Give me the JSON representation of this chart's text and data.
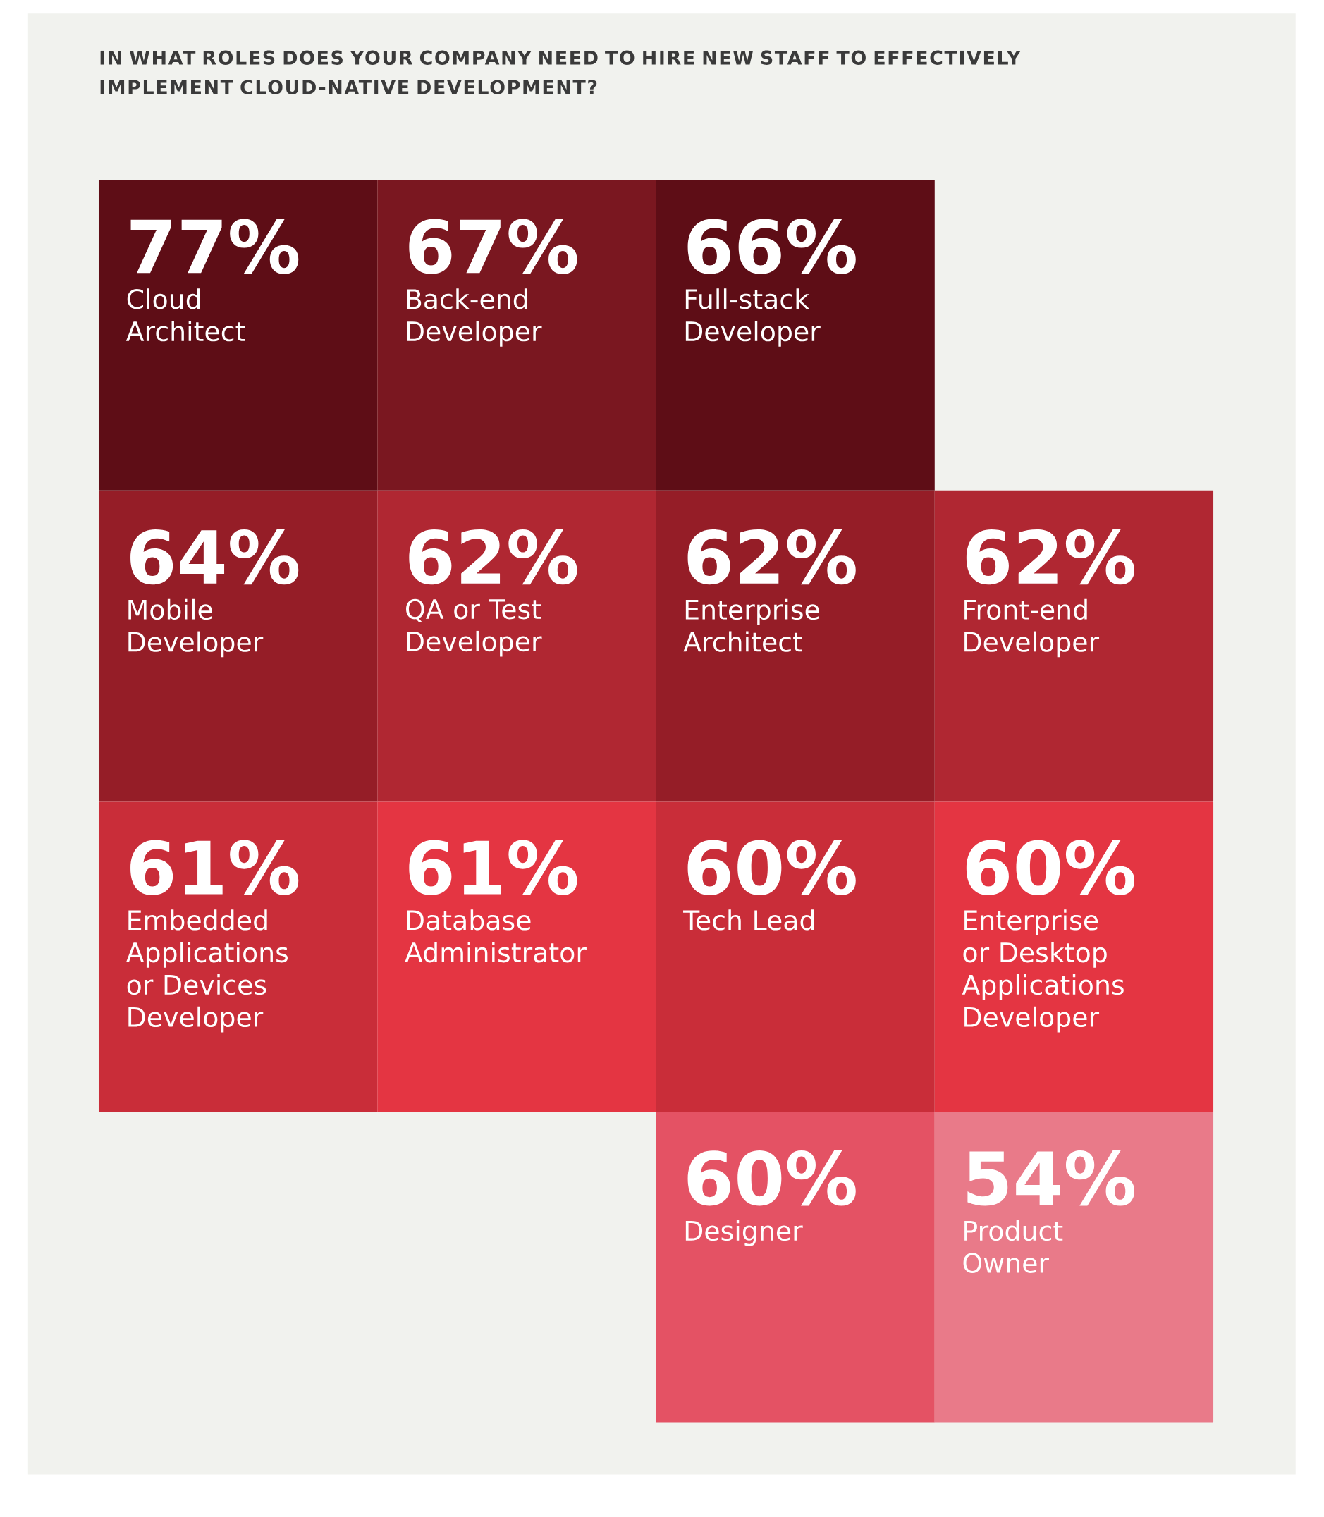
{
  "chart_data": {
    "type": "other",
    "title": "IN WHAT ROLES DOES YOUR COMPANY NEED TO HIRE NEW STAFF TO EFFECTIVELY IMPLEMENT CLOUD-NATIVE DEVELOPMENT?",
    "categories": [
      "Cloud Architect",
      "Back-end Developer",
      "Full-stack Developer",
      "Mobile Developer",
      "QA or Test Developer",
      "Enterprise Architect",
      "Front-end Developer",
      "Embedded Applications or Devices Developer",
      "Database Administrator",
      "Tech Lead",
      "Enterprise or Desktop Applications Developer",
      "Designer",
      "Product Owner"
    ],
    "values": [
      77,
      67,
      66,
      64,
      62,
      62,
      62,
      61,
      61,
      60,
      60,
      60,
      54
    ],
    "value_labels": [
      "77%",
      "67%",
      "66%",
      "64%",
      "62%",
      "62%",
      "62%",
      "61%",
      "61%",
      "60%",
      "60%",
      "60%",
      "54%"
    ],
    "colors": [
      "#5e0d16",
      "#7a1720",
      "#5e0d16",
      "#951d27",
      "#b02732",
      "#951d27",
      "#b02732",
      "#c92d39",
      "#e43542",
      "#c92d39",
      "#e43542",
      "#e45264",
      "#e97a89"
    ]
  }
}
